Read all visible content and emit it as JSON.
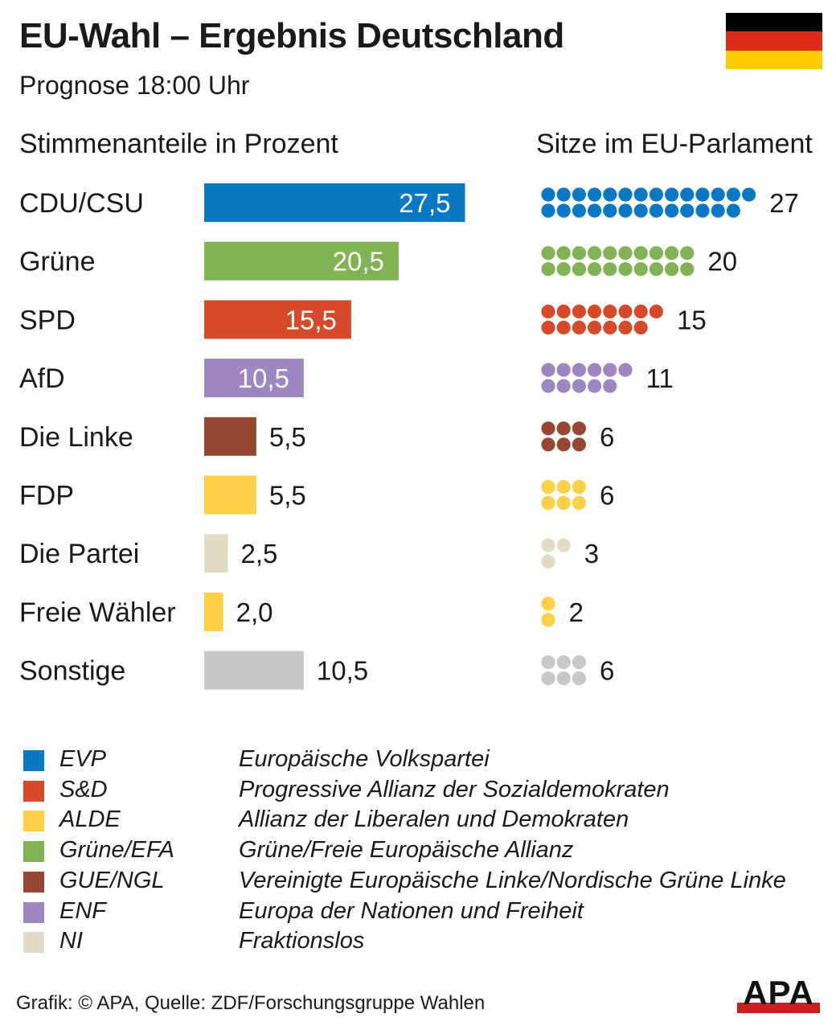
{
  "header": {
    "title": "EU-Wahl – Ergebnis Deutschland",
    "subtitle": "Prognose 18:00 Uhr"
  },
  "flag_colors": [
    "#000000",
    "#dd2c1a",
    "#ffcc00"
  ],
  "chart_data": {
    "type": "bar",
    "left_title": "Stimmenanteile in Prozent",
    "right_title": "Sitze im EU-Parlament",
    "categories": [
      "CDU/CSU",
      "Grüne",
      "SPD",
      "AfD",
      "Die Linke",
      "FDP",
      "Die Partei",
      "Freie Wähler",
      "Sonstige"
    ],
    "values": [
      27.5,
      20.5,
      15.5,
      10.5,
      5.5,
      5.5,
      2.5,
      2.0,
      10.5
    ],
    "value_labels": [
      "27,5",
      "20,5",
      "15,5",
      "10,5",
      "5,5",
      "5,5",
      "2,5",
      "2,0",
      "10,5"
    ],
    "seats": [
      27,
      20,
      15,
      11,
      6,
      6,
      3,
      2,
      6
    ],
    "seat_labels": [
      "27",
      "20",
      "15",
      "11",
      "6",
      "6",
      "3",
      "2",
      "6"
    ],
    "colors": [
      "#0a78c2",
      "#81b253",
      "#d44a2a",
      "#9e86c2",
      "#954734",
      "#fdd048",
      "#e3dbc3",
      "#fdd048",
      "#c8c8c8"
    ],
    "label_inside": [
      true,
      true,
      true,
      true,
      false,
      false,
      false,
      false,
      false
    ]
  },
  "legend": [
    {
      "abbr": "EVP",
      "name": "Europäische Volkspartei",
      "color": "#0a78c2"
    },
    {
      "abbr": "S&D",
      "name": "Progressive Allianz der Sozialdemokraten",
      "color": "#d44a2a"
    },
    {
      "abbr": "ALDE",
      "name": "Allianz der Liberalen und Demokraten",
      "color": "#fdd048"
    },
    {
      "abbr": "Grüne/EFA",
      "name": "Grüne/Freie Europäische Allianz",
      "color": "#81b253"
    },
    {
      "abbr": "GUE/NGL",
      "name": "Vereinigte Europäische Linke/Nordische Grüne Linke",
      "color": "#954734"
    },
    {
      "abbr": "ENF",
      "name": "Europa der Nationen und Freiheit",
      "color": "#9e86c2"
    },
    {
      "abbr": "NI",
      "name": "Fraktionslos",
      "color": "#e3dbc3"
    }
  ],
  "footer": {
    "source": "Grafik: © APA, Quelle: ZDF/Forschungsgruppe Wahlen",
    "logo_text": "APA",
    "logo_color": "#cc1f1f"
  }
}
